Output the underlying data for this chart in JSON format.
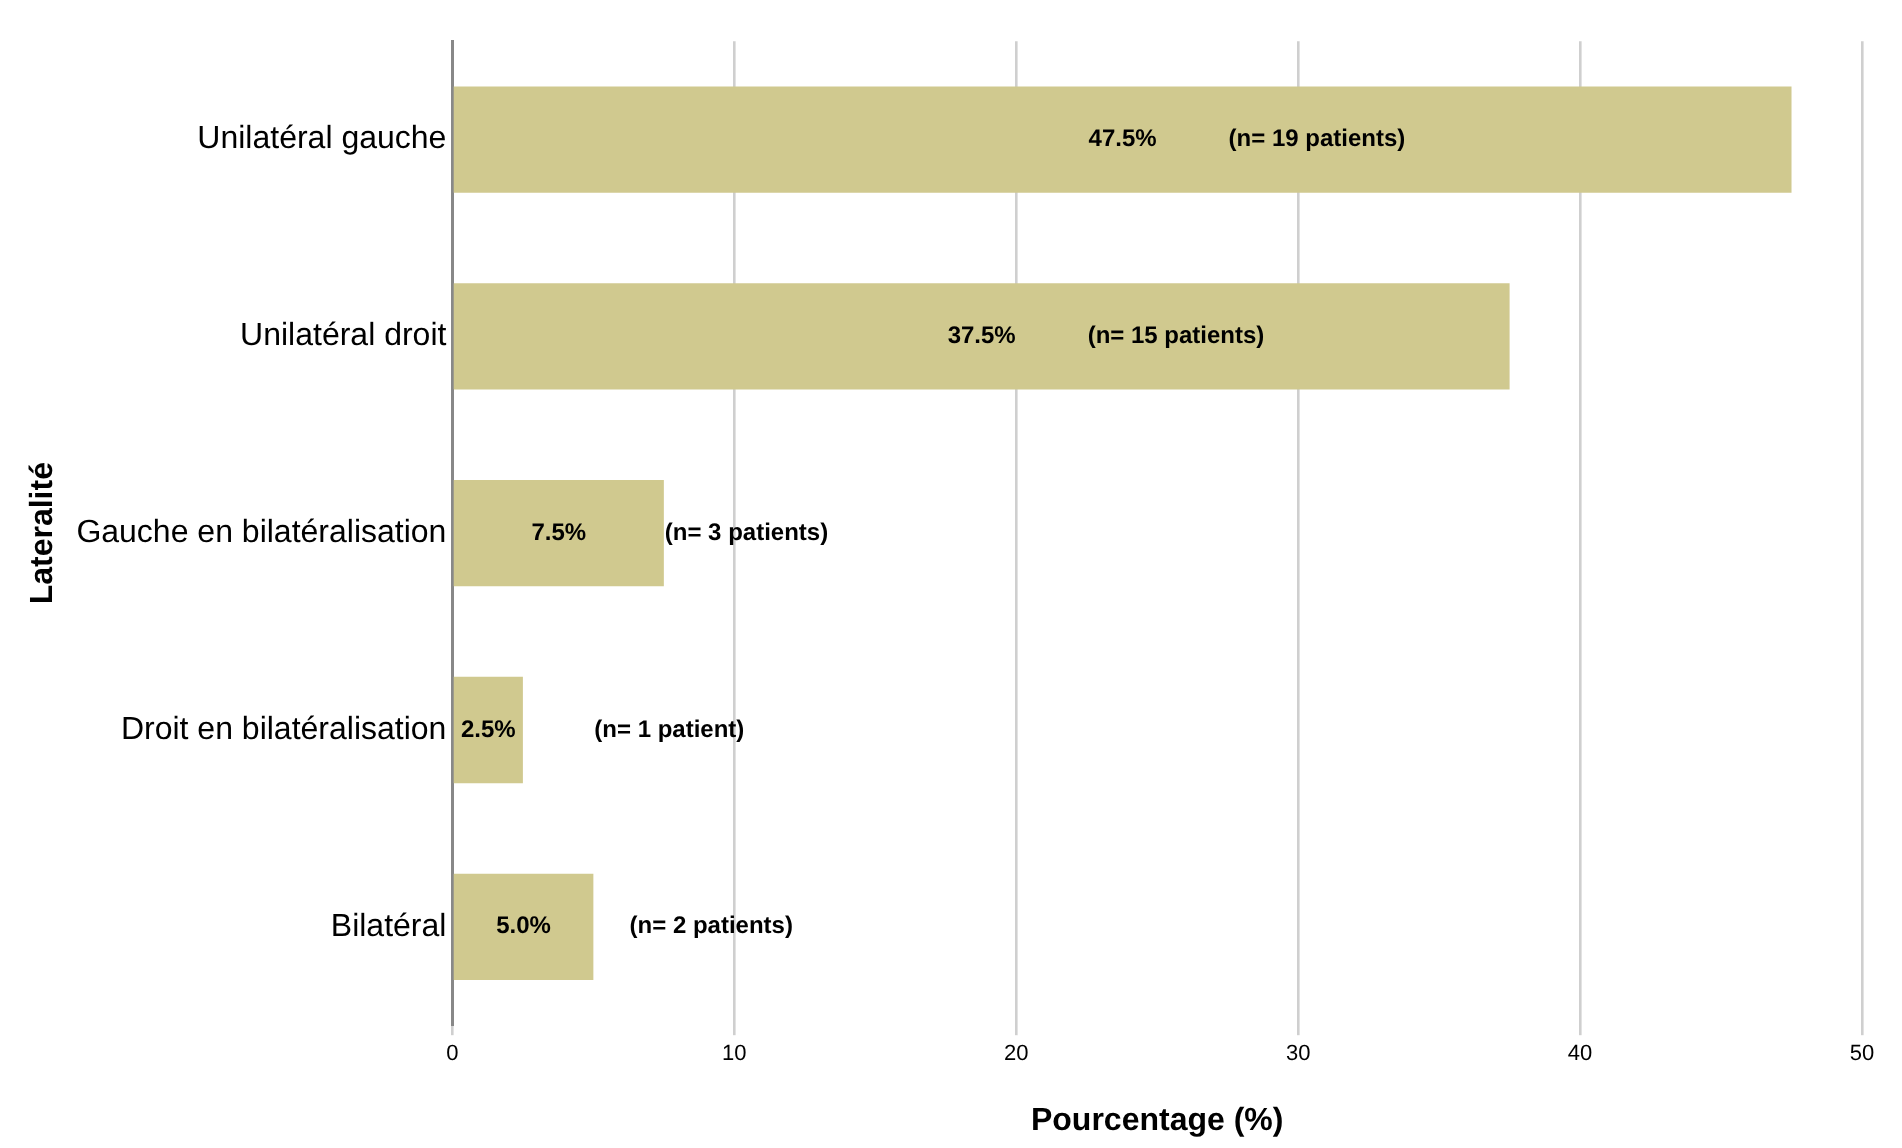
{
  "chart_data": {
    "type": "bar",
    "orientation": "horizontal",
    "xlabel": "Pourcentage (%)",
    "ylabel": "Lateralité",
    "categories": [
      "Unilatéral gauche",
      "Unilatéral droit",
      "Gauche en bilatéralisation",
      "Droit en bilatéralisation",
      "Bilatéral"
    ],
    "values": [
      47.5,
      37.5,
      7.5,
      2.5,
      5.0
    ],
    "color": "#d0c98f",
    "value_labels": [
      "47.5%",
      "37.5%",
      "7.5%",
      "2.5%",
      "5.0%"
    ],
    "annotations": [
      "(n= 19 patients)",
      "(n= 15 patients)",
      "(n= 3 patients)",
      "(n= 1 patient)",
      "(n= 2 patients)"
    ],
    "xlim": [
      0,
      50
    ],
    "xticks": [
      0,
      10,
      20,
      30,
      40,
      50
    ],
    "grid": "x",
    "legend": false
  }
}
